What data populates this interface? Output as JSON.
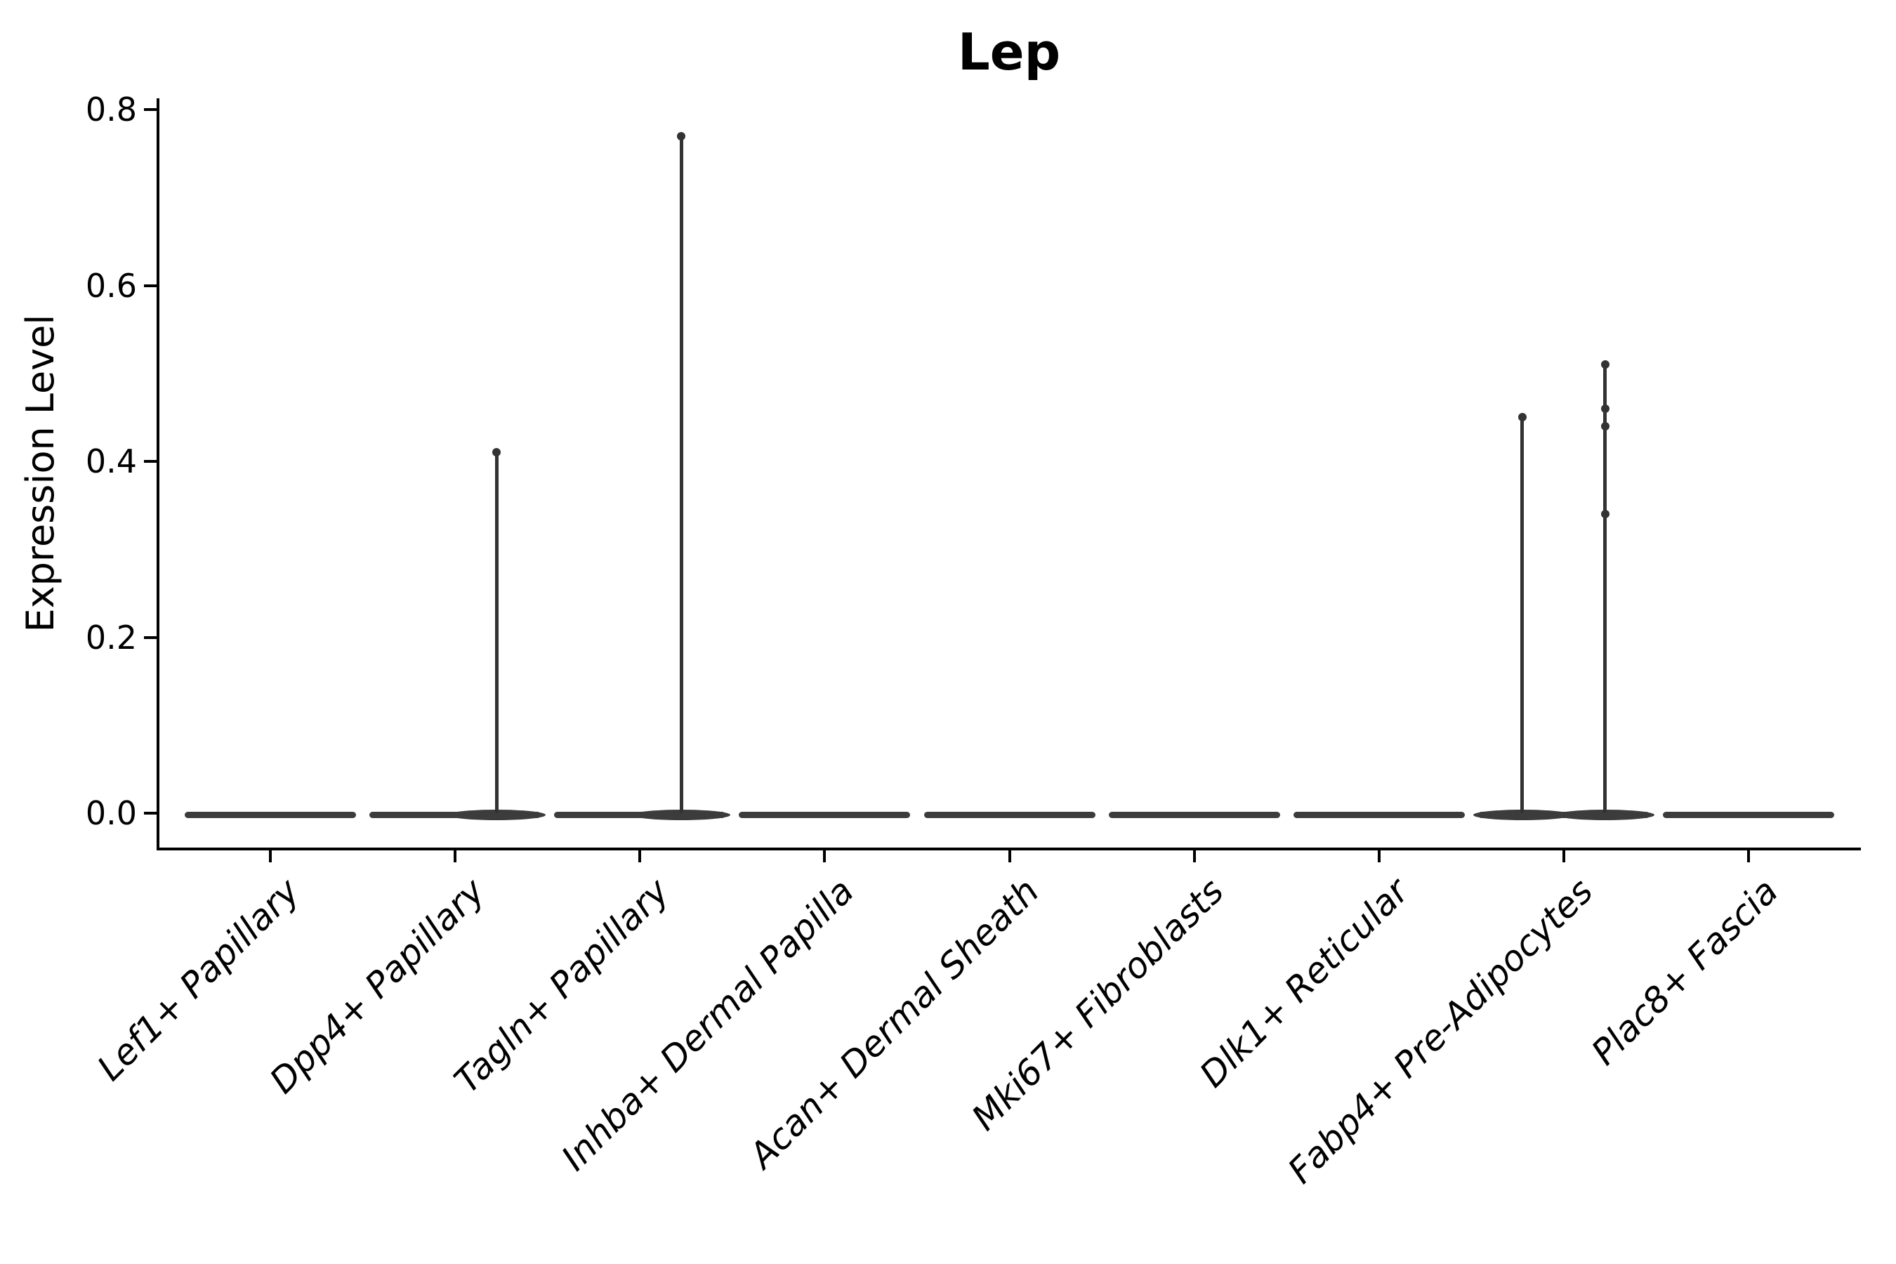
{
  "title": "Lep",
  "y_axis": {
    "label": "Expression Level",
    "tick_labels": [
      "0.0",
      "0.2",
      "0.4",
      "0.6",
      "0.8"
    ]
  },
  "colors": {
    "axis": "#000000",
    "text": "#000000",
    "violin_fill": "#3c3c3c",
    "spike": "#333333",
    "background": "#ffffff"
  },
  "chart_data": {
    "type": "violin",
    "title": "Lep",
    "xlabel": "",
    "ylabel": "Expression Level",
    "ylim": [
      0,
      0.8
    ],
    "yticks": [
      0.0,
      0.2,
      0.4,
      0.6,
      0.8
    ],
    "grid": false,
    "legend": null,
    "x_tick_rotation_deg": 45,
    "x_tick_style": "italic",
    "categories": [
      "Lef1+ Papillary",
      "Dpp4+ Papillary",
      "Tagln+ Papillary",
      "Inhba+ Dermal Papilla",
      "Acan+ Dermal Sheath",
      "Mki67+ Fibroblasts",
      "Dlk1+ Reticular",
      "Fabp4+ Pre-Adipocytes",
      "Plac8+ Fascia"
    ],
    "series": [
      {
        "category": "Lef1+ Papillary",
        "body_value": 0.0,
        "spikes": []
      },
      {
        "category": "Dpp4+ Papillary",
        "body_value": 0.0,
        "spikes": [
          {
            "offset_frac": 0.224,
            "max": 0.41,
            "points": [
              0.41
            ]
          }
        ]
      },
      {
        "category": "Tagln+ Papillary",
        "body_value": 0.0,
        "spikes": [
          {
            "offset_frac": 0.224,
            "max": 0.77,
            "points": [
              0.77
            ]
          }
        ]
      },
      {
        "category": "Inhba+ Dermal Papilla",
        "body_value": 0.0,
        "spikes": []
      },
      {
        "category": "Acan+ Dermal Sheath",
        "body_value": 0.0,
        "spikes": []
      },
      {
        "category": "Mki67+ Fibroblasts",
        "body_value": 0.0,
        "spikes": []
      },
      {
        "category": "Dlk1+ Reticular",
        "body_value": 0.0,
        "spikes": []
      },
      {
        "category": "Fabp4+ Pre-Adipocytes",
        "body_value": 0.0,
        "spikes": [
          {
            "offset_frac": -0.224,
            "max": 0.45,
            "points": [
              0.45
            ]
          },
          {
            "offset_frac": 0.224,
            "max": 0.51,
            "points": [
              0.51,
              0.46,
              0.44,
              0.34
            ]
          }
        ]
      },
      {
        "category": "Plac8+ Fascia",
        "body_value": 0.0,
        "spikes": []
      }
    ]
  }
}
